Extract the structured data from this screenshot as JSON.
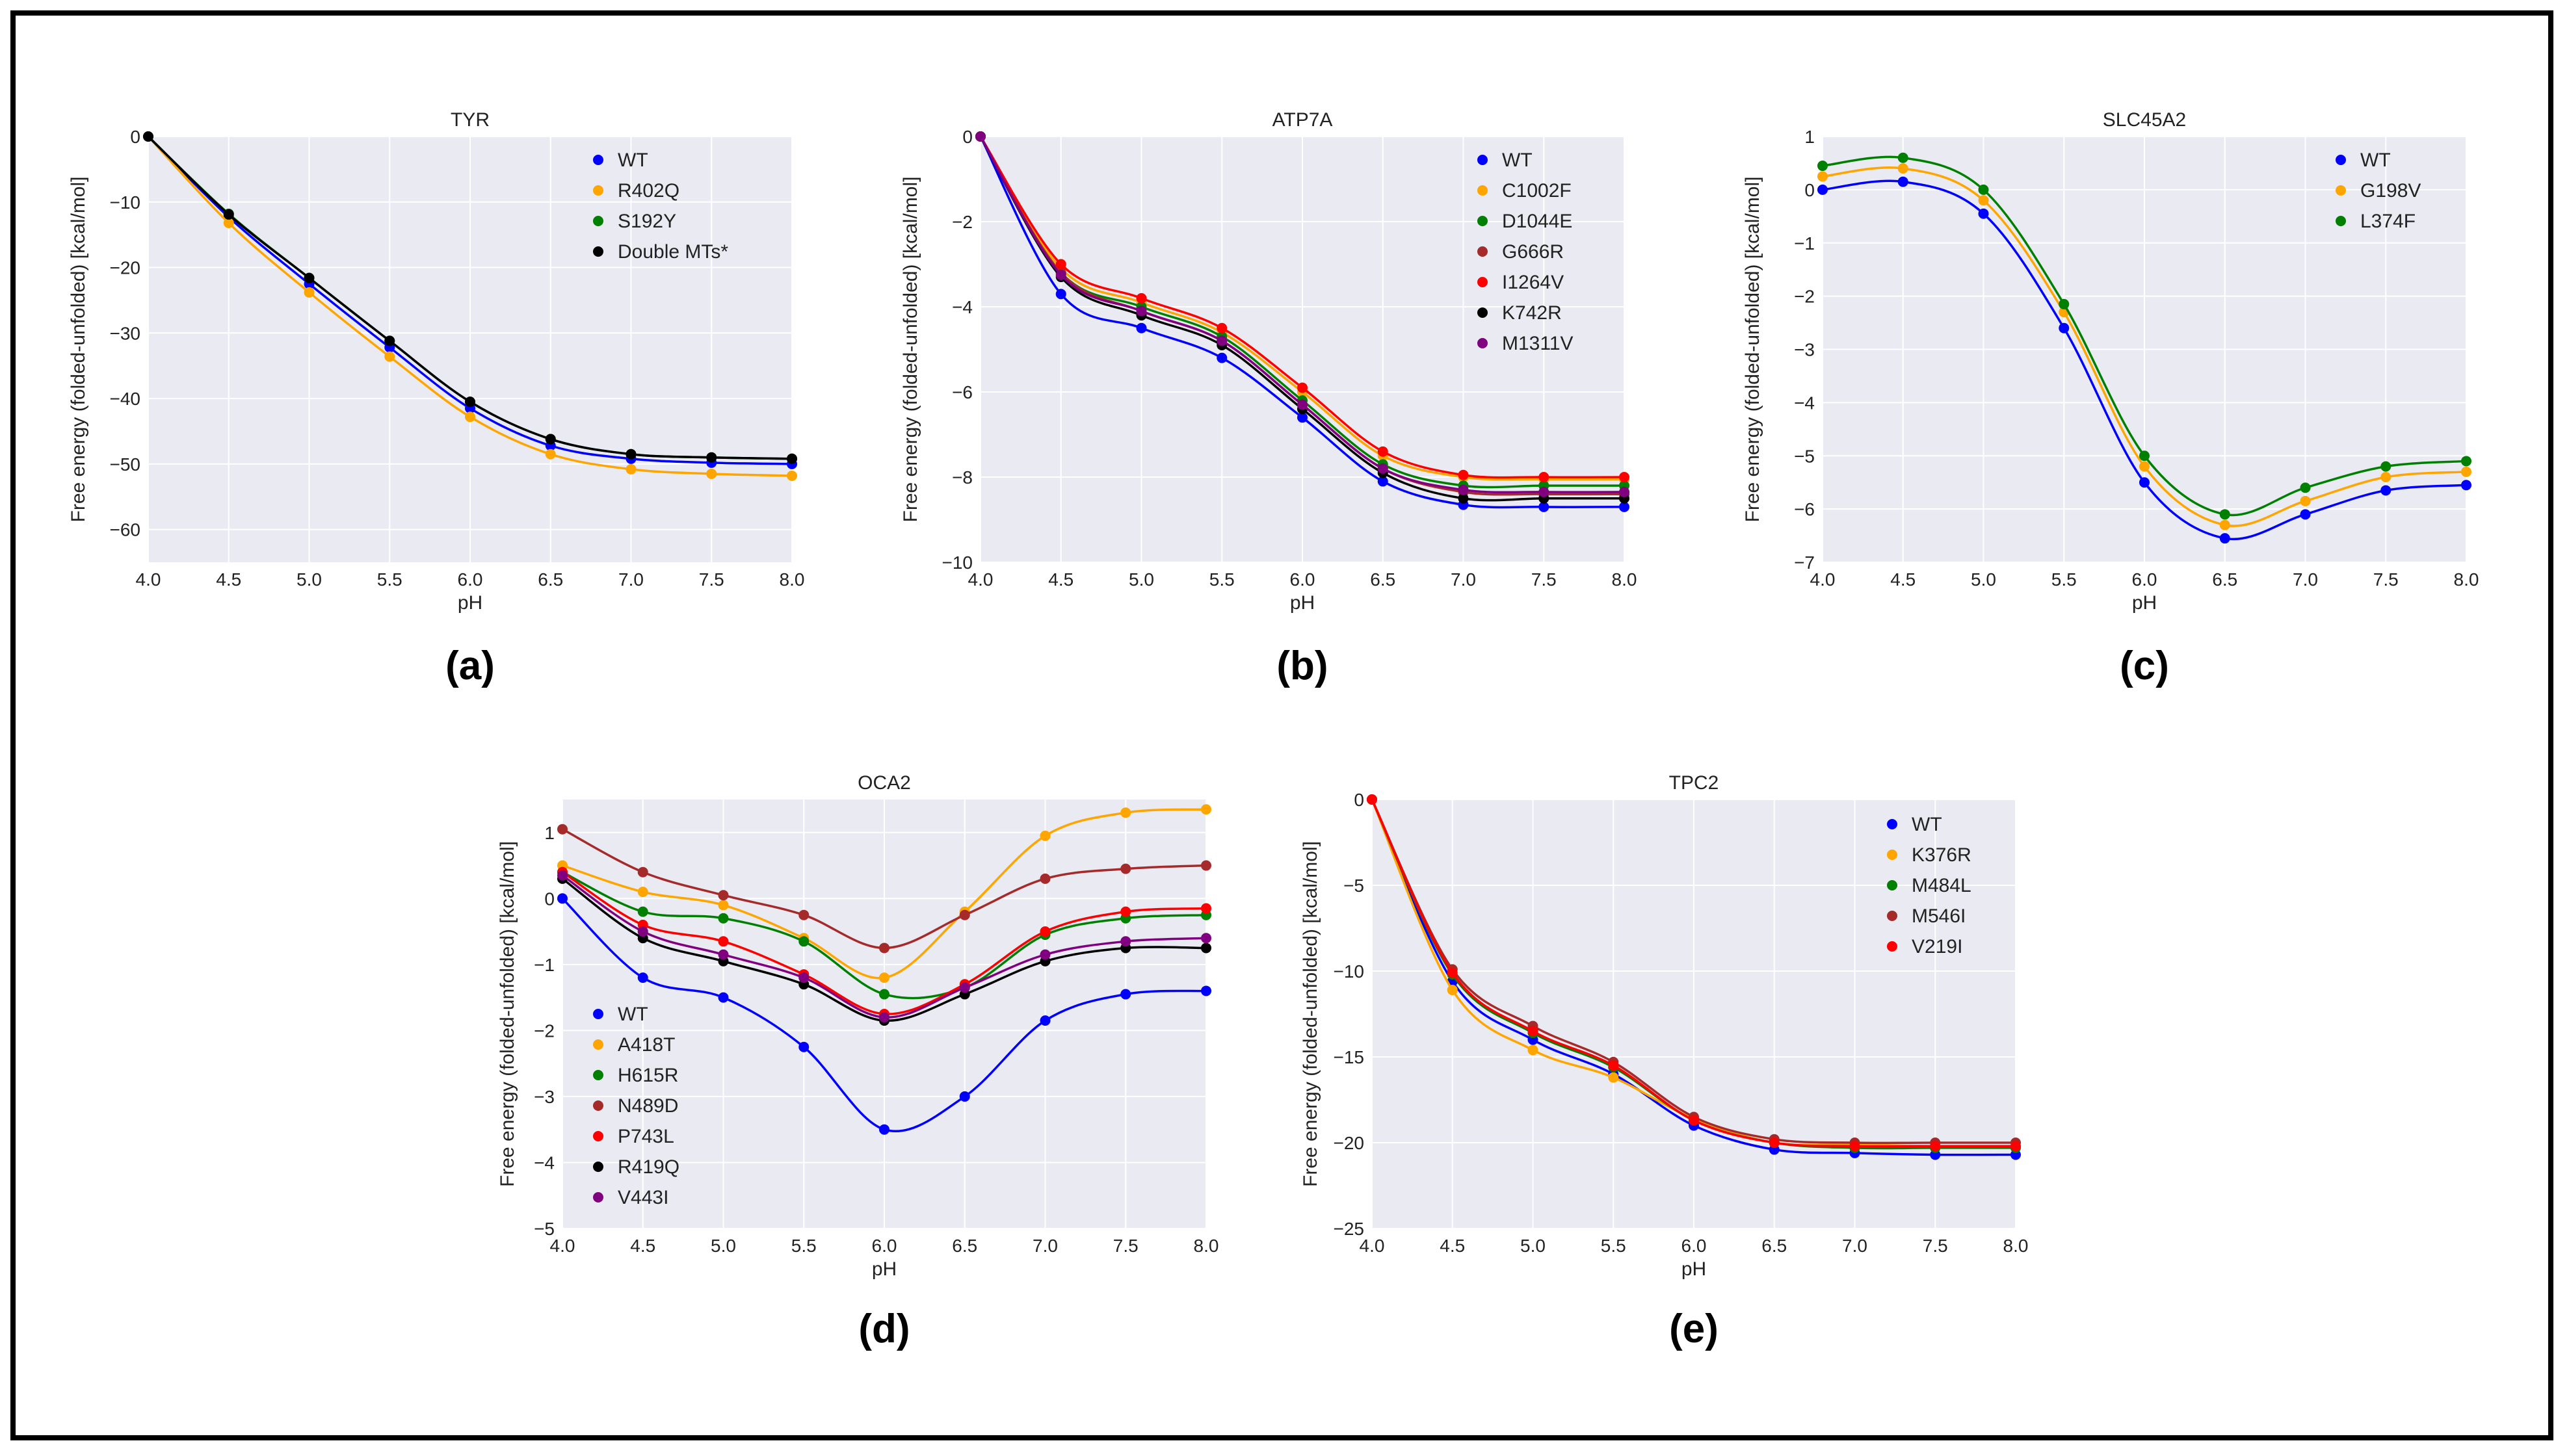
{
  "chart_data": [
    {
      "type": "line",
      "title": "TYR",
      "caption": "(a)",
      "xlabel": "pH",
      "ylabel": "Free energy (folded-unfolded) [kcal/mol]",
      "xlim": [
        4.0,
        8.0
      ],
      "ylim": [
        -65,
        0
      ],
      "xticks": [
        "4.0",
        "4.5",
        "5.0",
        "5.5",
        "6.0",
        "6.5",
        "7.0",
        "7.5",
        "8.0"
      ],
      "yticks": [
        "0",
        "−10",
        "−20",
        "−30",
        "−40",
        "−50",
        "−60"
      ],
      "yticks_values": [
        0,
        -10,
        -20,
        -30,
        -40,
        -50,
        -60
      ],
      "legend_position": "top-right",
      "x": [
        4.0,
        4.5,
        5.0,
        5.5,
        6.0,
        6.5,
        7.0,
        7.5,
        8.0
      ],
      "series": [
        {
          "name": "WT",
          "color": "#0000ff",
          "values": [
            0,
            -12.3,
            -22.5,
            -32.2,
            -41.5,
            -47.2,
            -49.2,
            -49.8,
            -50.0
          ]
        },
        {
          "name": "R402Q",
          "color": "#ffa500",
          "values": [
            0,
            -13.2,
            -23.8,
            -33.6,
            -42.8,
            -48.5,
            -50.8,
            -51.5,
            -51.8
          ]
        },
        {
          "name": "S192Y",
          "color": "#008000",
          "values": [
            0,
            -11.8,
            -21.6,
            -31.2,
            -40.5,
            -46.2,
            -48.5,
            -49.0,
            -49.2
          ]
        },
        {
          "name": "Double MTs*",
          "color": "#000000",
          "values": [
            0,
            -11.9,
            -21.6,
            -31.2,
            -40.5,
            -46.2,
            -48.5,
            -49.0,
            -49.2
          ]
        }
      ]
    },
    {
      "type": "line",
      "title": "ATP7A",
      "caption": "(b)",
      "xlabel": "pH",
      "ylabel": "Free energy (folded-unfolded) [kcal/mol]",
      "xlim": [
        4.0,
        8.0
      ],
      "ylim": [
        -10,
        0
      ],
      "xticks": [
        "4.0",
        "4.5",
        "5.0",
        "5.5",
        "6.0",
        "6.5",
        "7.0",
        "7.5",
        "8.0"
      ],
      "yticks": [
        "0",
        "−2",
        "−4",
        "−6",
        "−8",
        "−10"
      ],
      "yticks_values": [
        0,
        -2,
        -4,
        -6,
        -8,
        -10
      ],
      "legend_position": "top-right",
      "x": [
        4.0,
        4.5,
        5.0,
        5.5,
        6.0,
        6.5,
        7.0,
        7.5,
        8.0
      ],
      "series": [
        {
          "name": "WT",
          "color": "#0000ff",
          "values": [
            0,
            -3.7,
            -4.5,
            -5.2,
            -6.6,
            -8.1,
            -8.65,
            -8.7,
            -8.7
          ]
        },
        {
          "name": "C1002F",
          "color": "#ffa500",
          "values": [
            0,
            -3.1,
            -3.9,
            -4.6,
            -6.0,
            -7.5,
            -8.0,
            -8.05,
            -8.05
          ]
        },
        {
          "name": "D1044E",
          "color": "#008000",
          "values": [
            0,
            -3.2,
            -4.0,
            -4.7,
            -6.2,
            -7.7,
            -8.2,
            -8.2,
            -8.2
          ]
        },
        {
          "name": "G666R",
          "color": "#a52a2a",
          "values": [
            0,
            -3.2,
            -4.1,
            -4.8,
            -6.3,
            -7.8,
            -8.35,
            -8.4,
            -8.4
          ]
        },
        {
          "name": "I1264V",
          "color": "#ff0000",
          "values": [
            0,
            -3.0,
            -3.8,
            -4.5,
            -5.9,
            -7.4,
            -7.95,
            -8.0,
            -8.0
          ]
        },
        {
          "name": "K742R",
          "color": "#000000",
          "values": [
            0,
            -3.3,
            -4.2,
            -4.9,
            -6.4,
            -7.9,
            -8.5,
            -8.5,
            -8.5
          ]
        },
        {
          "name": "M1311V",
          "color": "#800080",
          "values": [
            0,
            -3.25,
            -4.1,
            -4.8,
            -6.3,
            -7.8,
            -8.3,
            -8.35,
            -8.35
          ]
        }
      ]
    },
    {
      "type": "line",
      "title": "SLC45A2",
      "caption": "(c)",
      "xlabel": "pH",
      "ylabel": "Free energy (folded-unfolded) [kcal/mol]",
      "xlim": [
        4.0,
        8.0
      ],
      "ylim": [
        -7,
        1
      ],
      "xticks": [
        "4.0",
        "4.5",
        "5.0",
        "5.5",
        "6.0",
        "6.5",
        "7.0",
        "7.5",
        "8.0"
      ],
      "yticks": [
        "1",
        "0",
        "−1",
        "−2",
        "−3",
        "−4",
        "−5",
        "−6",
        "−7"
      ],
      "yticks_values": [
        1,
        0,
        -1,
        -2,
        -3,
        -4,
        -5,
        -6,
        -7
      ],
      "legend_position": "top-right",
      "x": [
        4.0,
        4.5,
        5.0,
        5.5,
        6.0,
        6.5,
        7.0,
        7.5,
        8.0
      ],
      "series": [
        {
          "name": "WT",
          "color": "#0000ff",
          "values": [
            0.0,
            0.15,
            -0.45,
            -2.6,
            -5.5,
            -6.55,
            -6.1,
            -5.65,
            -5.55
          ]
        },
        {
          "name": "G198V",
          "color": "#ffa500",
          "values": [
            0.25,
            0.4,
            -0.2,
            -2.3,
            -5.2,
            -6.3,
            -5.85,
            -5.4,
            -5.3
          ]
        },
        {
          "name": "L374F",
          "color": "#008000",
          "values": [
            0.45,
            0.6,
            0.0,
            -2.15,
            -5.0,
            -6.1,
            -5.6,
            -5.2,
            -5.1
          ]
        }
      ]
    },
    {
      "type": "line",
      "title": "OCA2",
      "caption": "(d)",
      "xlabel": "pH",
      "ylabel": "Free energy (folded-unfolded) [kcal/mol]",
      "xlim": [
        4.0,
        8.0
      ],
      "ylim": [
        -5,
        1.5
      ],
      "xticks": [
        "4.0",
        "4.5",
        "5.0",
        "5.5",
        "6.0",
        "6.5",
        "7.0",
        "7.5",
        "8.0"
      ],
      "yticks": [
        "1",
        "0",
        "−1",
        "−2",
        "−3",
        "−4",
        "−5"
      ],
      "yticks_values": [
        1,
        0,
        -1,
        -2,
        -3,
        -4,
        -5
      ],
      "legend_position": "bottom-left",
      "x": [
        4.0,
        4.5,
        5.0,
        5.5,
        6.0,
        6.5,
        7.0,
        7.5,
        8.0
      ],
      "series": [
        {
          "name": "WT",
          "color": "#0000ff",
          "values": [
            0.0,
            -1.2,
            -1.5,
            -2.25,
            -3.5,
            -3.0,
            -1.85,
            -1.45,
            -1.4
          ]
        },
        {
          "name": "A418T",
          "color": "#ffa500",
          "values": [
            0.5,
            0.1,
            -0.1,
            -0.6,
            -1.2,
            -0.2,
            0.95,
            1.3,
            1.35
          ]
        },
        {
          "name": "H615R",
          "color": "#008000",
          "values": [
            0.4,
            -0.2,
            -0.3,
            -0.65,
            -1.45,
            -1.35,
            -0.55,
            -0.3,
            -0.25
          ]
        },
        {
          "name": "N489D",
          "color": "#a52a2a",
          "values": [
            1.05,
            0.4,
            0.05,
            -0.25,
            -0.75,
            -0.25,
            0.3,
            0.45,
            0.5
          ]
        },
        {
          "name": "P743L",
          "color": "#ff0000",
          "values": [
            0.4,
            -0.4,
            -0.65,
            -1.15,
            -1.75,
            -1.3,
            -0.5,
            -0.2,
            -0.15
          ]
        },
        {
          "name": "R419Q",
          "color": "#000000",
          "values": [
            0.3,
            -0.6,
            -0.95,
            -1.3,
            -1.85,
            -1.45,
            -0.95,
            -0.75,
            -0.75
          ]
        },
        {
          "name": "V443I",
          "color": "#800080",
          "values": [
            0.35,
            -0.5,
            -0.85,
            -1.2,
            -1.8,
            -1.35,
            -0.85,
            -0.65,
            -0.6
          ]
        }
      ]
    },
    {
      "type": "line",
      "title": "TPC2",
      "caption": "(e)",
      "xlabel": "pH",
      "ylabel": "Free energy (folded-unfolded) [kcal/mol]",
      "xlim": [
        4.0,
        8.0
      ],
      "ylim": [
        -25,
        0
      ],
      "xticks": [
        "4.0",
        "4.5",
        "5.0",
        "5.5",
        "6.0",
        "6.5",
        "7.0",
        "7.5",
        "8.0"
      ],
      "yticks": [
        "0",
        "−5",
        "−10",
        "−15",
        "−20",
        "−25"
      ],
      "yticks_values": [
        0,
        -5,
        -10,
        -15,
        -20,
        -25
      ],
      "legend_position": "top-right",
      "x": [
        4.0,
        4.5,
        5.0,
        5.5,
        6.0,
        6.5,
        7.0,
        7.5,
        8.0
      ],
      "series": [
        {
          "name": "WT",
          "color": "#0000ff",
          "values": [
            0,
            -10.6,
            -14.0,
            -16.0,
            -19.0,
            -20.4,
            -20.6,
            -20.7,
            -20.7
          ]
        },
        {
          "name": "K376R",
          "color": "#ffa500",
          "values": [
            0,
            -11.1,
            -14.6,
            -16.2,
            -18.6,
            -20.0,
            -20.1,
            -20.2,
            -20.2
          ]
        },
        {
          "name": "M484L",
          "color": "#008000",
          "values": [
            0,
            -10.2,
            -13.6,
            -15.6,
            -18.7,
            -20.0,
            -20.3,
            -20.3,
            -20.3
          ]
        },
        {
          "name": "M546I",
          "color": "#a52a2a",
          "values": [
            0,
            -9.9,
            -13.2,
            -15.3,
            -18.5,
            -19.8,
            -20.0,
            -20.0,
            -20.0
          ]
        },
        {
          "name": "V219I",
          "color": "#ff0000",
          "values": [
            0,
            -10.1,
            -13.5,
            -15.5,
            -18.7,
            -20.0,
            -20.2,
            -20.2,
            -20.2
          ]
        }
      ]
    }
  ]
}
